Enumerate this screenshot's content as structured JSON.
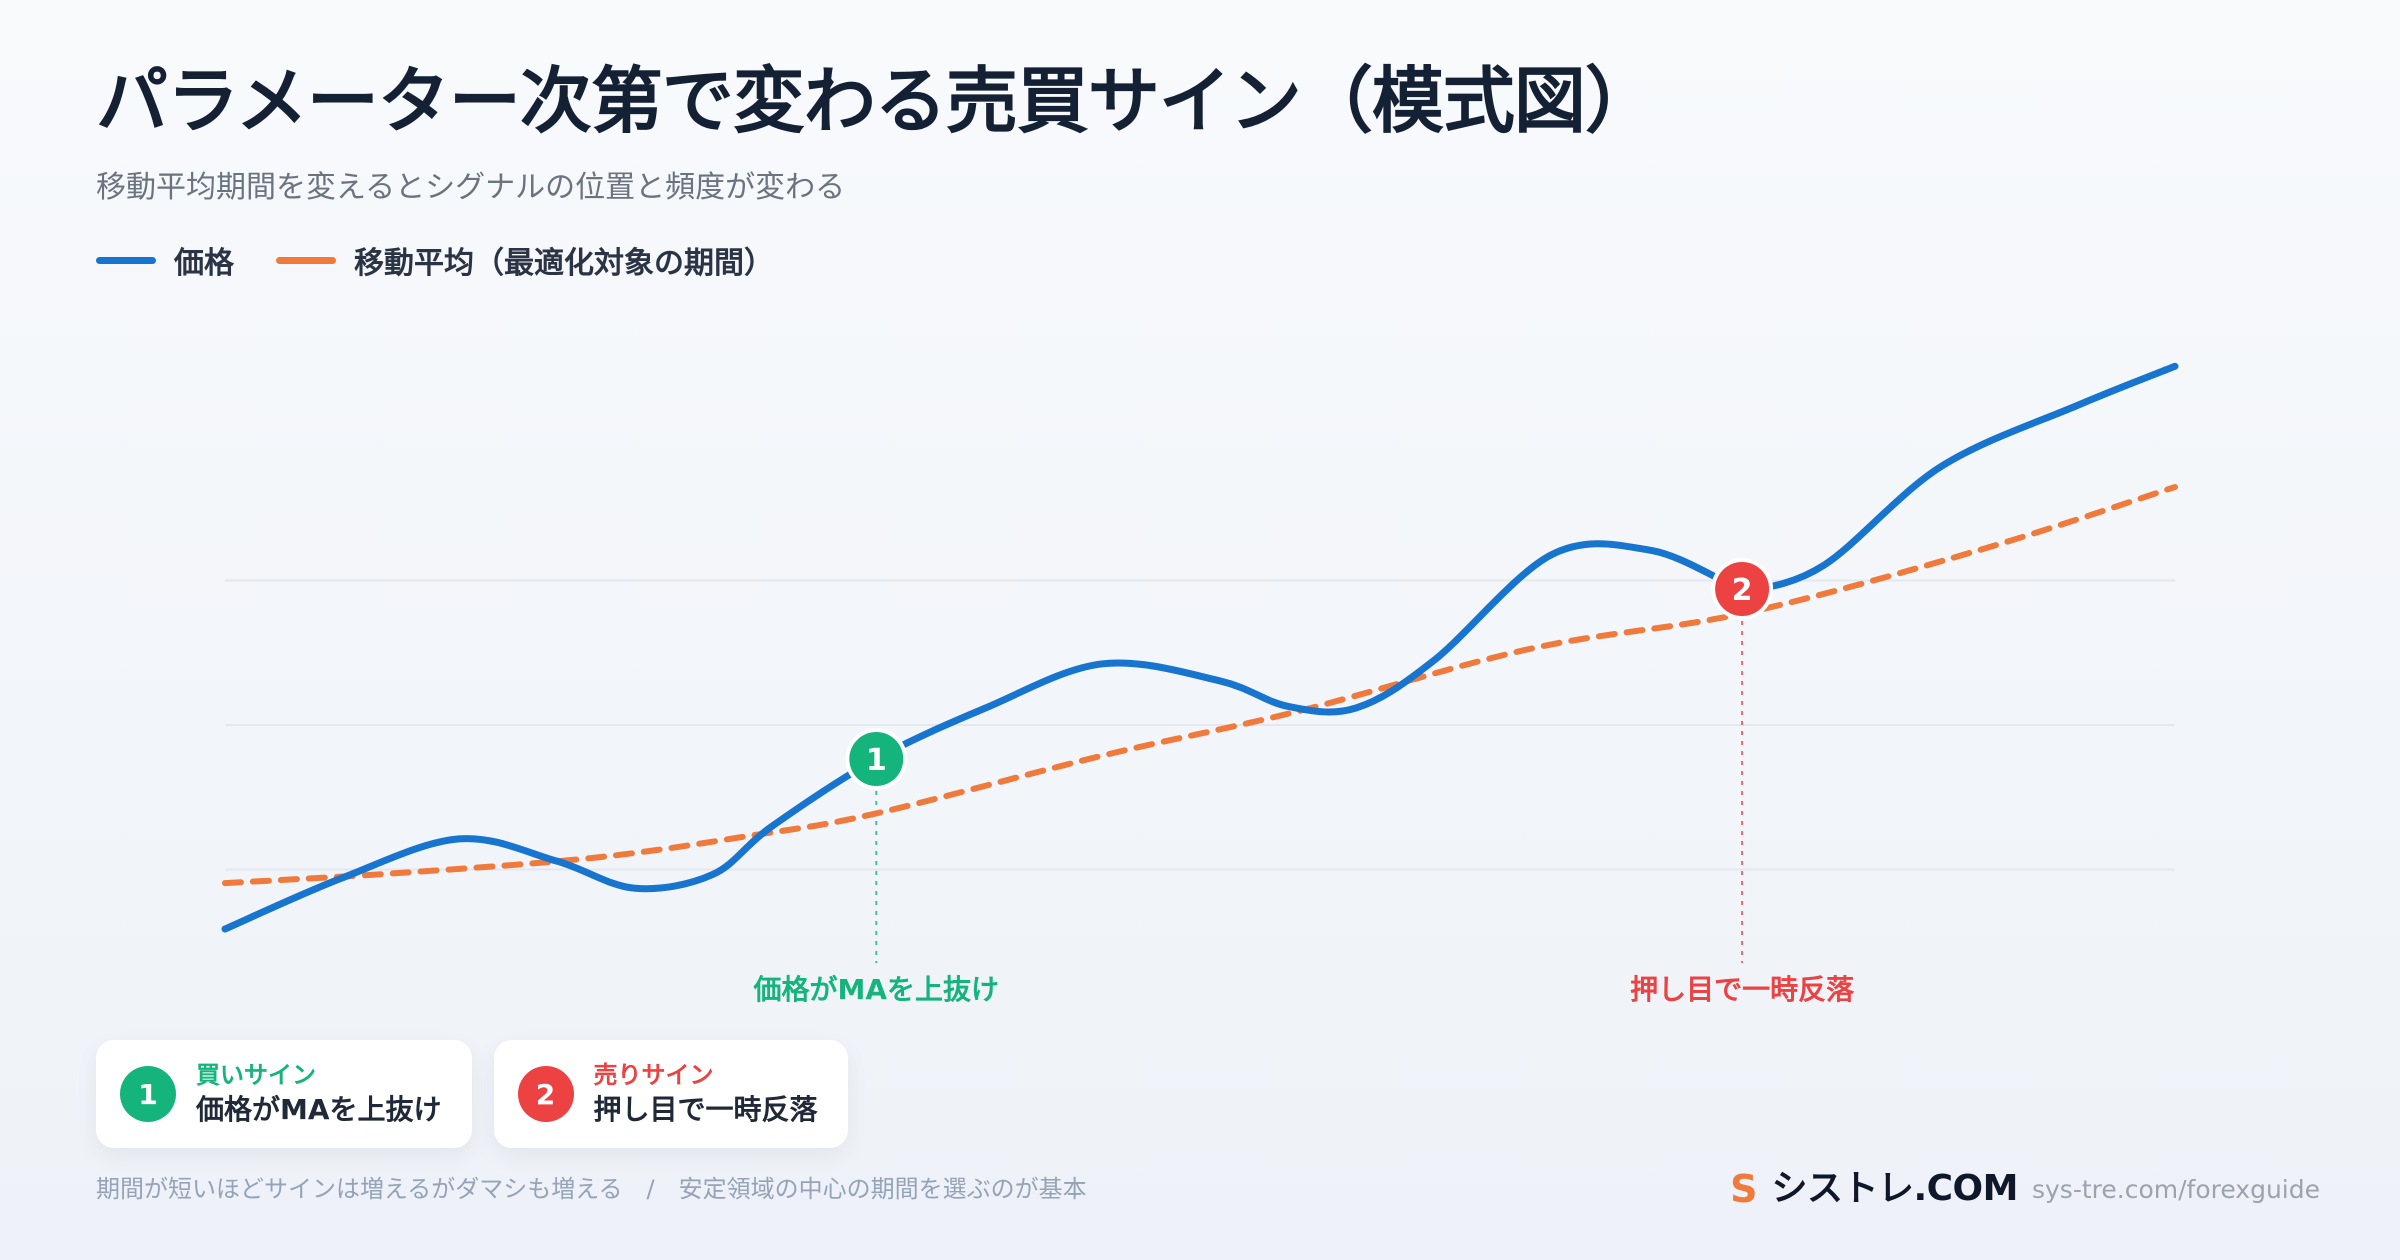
{
  "header": {
    "title": "パラメーター次第で変わる売買サイン（模式図）",
    "subtitle": "移動平均期間を変えるとシグナルの位置と頻度が変わる"
  },
  "colors": {
    "price": "#1774cf",
    "ma": "#f07a3c",
    "buy": "#16b47d",
    "sell": "#ec4242",
    "grid": "#e3e8ef"
  },
  "chart_data": {
    "type": "line",
    "series": [
      {
        "name": "価格",
        "style": "solid",
        "values": [
          {
            "x": 0.0,
            "y": 0.0
          },
          {
            "x": 0.06,
            "y": 0.3
          },
          {
            "x": 0.12,
            "y": 0.53
          },
          {
            "x": 0.17,
            "y": 0.4
          },
          {
            "x": 0.21,
            "y": 0.24
          },
          {
            "x": 0.25,
            "y": 0.32
          },
          {
            "x": 0.28,
            "y": 0.6
          },
          {
            "x": 0.334,
            "y": 1.0
          },
          {
            "x": 0.39,
            "y": 1.3
          },
          {
            "x": 0.45,
            "y": 1.56
          },
          {
            "x": 0.51,
            "y": 1.46
          },
          {
            "x": 0.545,
            "y": 1.31
          },
          {
            "x": 0.58,
            "y": 1.3
          },
          {
            "x": 0.62,
            "y": 1.58
          },
          {
            "x": 0.68,
            "y": 2.2
          },
          {
            "x": 0.73,
            "y": 2.23
          },
          {
            "x": 0.77,
            "y": 2.04
          },
          {
            "x": 0.78,
            "y": 1.99
          },
          {
            "x": 0.82,
            "y": 2.14
          },
          {
            "x": 0.88,
            "y": 2.72
          },
          {
            "x": 0.95,
            "y": 3.08
          },
          {
            "x": 1.0,
            "y": 3.31
          }
        ]
      },
      {
        "name": "移動平均（最適化対象の期間）",
        "style": "dashed",
        "values": [
          {
            "x": 0.0,
            "y": 0.27
          },
          {
            "x": 0.09,
            "y": 0.33
          },
          {
            "x": 0.19,
            "y": 0.42
          },
          {
            "x": 0.27,
            "y": 0.55
          },
          {
            "x": 0.334,
            "y": 0.68
          },
          {
            "x": 0.45,
            "y": 1.02
          },
          {
            "x": 0.55,
            "y": 1.28
          },
          {
            "x": 0.67,
            "y": 1.65
          },
          {
            "x": 0.78,
            "y": 1.86
          },
          {
            "x": 0.9,
            "y": 2.23
          },
          {
            "x": 1.0,
            "y": 2.6
          }
        ]
      }
    ],
    "signals": [
      {
        "index": "1",
        "type": "buy",
        "x": 0.334,
        "label": "価格がMAを上抜け"
      },
      {
        "index": "2",
        "type": "sell",
        "x": 0.778,
        "label": "押し目で一時反落"
      }
    ],
    "xlim": [
      0,
      1
    ],
    "ylim": [
      -0.3,
      3.7
    ],
    "grid": "horizontal",
    "legend_position": "top-left"
  },
  "legend": [
    {
      "label": "価格"
    },
    {
      "label": "移動平均（最適化対象の期間）"
    }
  ],
  "cards": [
    {
      "badge": "1",
      "title": "買いサイン",
      "description": "価格がMAを上抜け"
    },
    {
      "badge": "2",
      "title": "売りサイン",
      "description": "押し目で一時反落"
    }
  ],
  "footer": {
    "note": "期間が短いほどサインは増えるがダマシも増える　/　安定領域の中心の期間を選ぶのが基本",
    "brand_logo": "S",
    "brand_name": "シストレ.COM",
    "brand_url": "sys-tre.com/forexguide"
  }
}
